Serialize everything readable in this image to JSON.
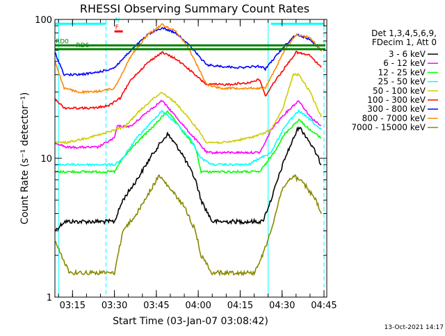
{
  "chart_data": {
    "type": "line",
    "title": "RHESSI Observing Summary Count Rates",
    "ylabel": "Count Rate (s⁻¹ detector⁻¹)",
    "xlabel": "Start Time (03-Jan-07 03:08:42)",
    "footer_date": "13-Oct-2021 14:17",
    "yscale": "log",
    "ylim": [
      1,
      100
    ],
    "xlim": [
      "03:08:42",
      "04:46:00"
    ],
    "x_ticks": [
      "03:15",
      "03:30",
      "03:45",
      "04:00",
      "04:15",
      "04:30",
      "04:45"
    ],
    "y_ticks": [
      "1",
      "10",
      "100"
    ],
    "legend_header": [
      "Det 1,3,4,5,6,9,",
      "FDecim 1, Att 0"
    ],
    "legend_position": "right",
    "series": [
      {
        "name": "3 - 6 keV",
        "color": "#000000",
        "points": [
          [
            "03:08:42",
            3.0
          ],
          [
            "03:12",
            3.5
          ],
          [
            "03:16",
            3.5
          ],
          [
            "03:20",
            3.5
          ],
          [
            "03:24",
            3.5
          ],
          [
            "03:30",
            3.5
          ],
          [
            "03:33",
            5
          ],
          [
            "03:38",
            7
          ],
          [
            "03:44",
            11
          ],
          [
            "03:49",
            15
          ],
          [
            "03:54",
            11
          ],
          [
            "03:59",
            7
          ],
          [
            "04:01",
            5
          ],
          [
            "04:05",
            3.5
          ],
          [
            "04:10",
            3.5
          ],
          [
            "04:15",
            3.5
          ],
          [
            "04:20",
            3.5
          ],
          [
            "04:23",
            3.5
          ],
          [
            "04:26",
            5
          ],
          [
            "04:31",
            10
          ],
          [
            "04:36",
            17
          ],
          [
            "04:39",
            14
          ],
          [
            "04:42",
            11
          ],
          [
            "04:44",
            9
          ]
        ]
      },
      {
        "name": "6 - 12 keV",
        "color": "#ff00ff",
        "points": [
          [
            "03:08:42",
            13
          ],
          [
            "03:13",
            12
          ],
          [
            "03:18",
            12
          ],
          [
            "03:24",
            12
          ],
          [
            "03:30",
            14
          ],
          [
            "03:31",
            17
          ],
          [
            "03:33",
            17
          ],
          [
            "03:36",
            17
          ],
          [
            "03:41",
            21
          ],
          [
            "03:47",
            26
          ],
          [
            "03:52",
            20
          ],
          [
            "03:56",
            16
          ],
          [
            "04:00",
            13
          ],
          [
            "04:03",
            11
          ],
          [
            "04:10",
            11
          ],
          [
            "04:16",
            11
          ],
          [
            "04:22",
            11
          ],
          [
            "04:24",
            13
          ],
          [
            "04:26",
            16
          ],
          [
            "04:30",
            20
          ],
          [
            "04:34",
            24
          ],
          [
            "04:36",
            26
          ],
          [
            "04:40",
            20
          ],
          [
            "04:44",
            17
          ]
        ]
      },
      {
        "name": "12 - 25 keV",
        "color": "#00ff00",
        "points": [
          [
            "03:08:42",
            8
          ],
          [
            "03:12",
            8
          ],
          [
            "03:18",
            8
          ],
          [
            "03:24",
            8
          ],
          [
            "03:30",
            8
          ],
          [
            "03:33",
            10
          ],
          [
            "03:38",
            13
          ],
          [
            "03:44",
            17
          ],
          [
            "03:49",
            22
          ],
          [
            "03:54",
            16
          ],
          [
            "03:59",
            12
          ],
          [
            "04:01",
            8
          ],
          [
            "04:05",
            8
          ],
          [
            "04:12",
            8
          ],
          [
            "04:18",
            8
          ],
          [
            "04:22",
            8
          ],
          [
            "04:24",
            9
          ],
          [
            "04:27",
            11
          ],
          [
            "04:31",
            15
          ],
          [
            "04:36",
            19
          ],
          [
            "04:40",
            16
          ],
          [
            "04:44",
            14
          ]
        ]
      },
      {
        "name": "25 - 50 keV",
        "color": "#00ffff",
        "points": [
          [
            "03:08:42",
            9
          ],
          [
            "03:12",
            9
          ],
          [
            "03:16",
            9
          ],
          [
            "03:24",
            9
          ],
          [
            "03:30",
            9
          ],
          [
            "03:33",
            10
          ],
          [
            "03:38",
            14
          ],
          [
            "03:43",
            18
          ],
          [
            "03:47",
            22
          ],
          [
            "03:52",
            18
          ],
          [
            "03:57",
            14
          ],
          [
            "04:01",
            10
          ],
          [
            "04:05",
            9
          ],
          [
            "04:12",
            9
          ],
          [
            "04:18",
            9
          ],
          [
            "04:22",
            10
          ],
          [
            "04:26",
            11
          ],
          [
            "04:31",
            17
          ],
          [
            "04:36",
            22
          ],
          [
            "04:40",
            19
          ],
          [
            "04:44",
            16
          ]
        ]
      },
      {
        "name": "50 - 100 keV",
        "color": "#cccc00",
        "points": [
          [
            "03:08:42",
            13
          ],
          [
            "03:13",
            13
          ],
          [
            "03:20",
            14
          ],
          [
            "03:26",
            15
          ],
          [
            "03:30",
            16
          ],
          [
            "03:34",
            17
          ],
          [
            "03:38",
            21
          ],
          [
            "03:43",
            26
          ],
          [
            "03:47",
            30
          ],
          [
            "03:52",
            25
          ],
          [
            "03:56",
            20
          ],
          [
            "04:00",
            16
          ],
          [
            "04:03",
            13
          ],
          [
            "04:10",
            13
          ],
          [
            "04:18",
            14
          ],
          [
            "04:23",
            15
          ],
          [
            "04:26",
            16
          ],
          [
            "04:30",
            22
          ],
          [
            "04:34",
            40
          ],
          [
            "04:36",
            40
          ],
          [
            "04:40",
            30
          ],
          [
            "04:44",
            20
          ]
        ]
      },
      {
        "name": "100 - 300 keV",
        "color": "#ff0000",
        "points": [
          [
            "03:08:42",
            27
          ],
          [
            "03:12",
            23
          ],
          [
            "03:17",
            23
          ],
          [
            "03:23",
            23
          ],
          [
            "03:28",
            24
          ],
          [
            "03:32",
            27
          ],
          [
            "03:36",
            37
          ],
          [
            "03:42",
            49
          ],
          [
            "03:47",
            58
          ],
          [
            "03:52",
            52
          ],
          [
            "03:56",
            45
          ],
          [
            "04:00",
            38
          ],
          [
            "04:03",
            34
          ],
          [
            "04:10",
            34
          ],
          [
            "04:18",
            35
          ],
          [
            "04:22",
            37
          ],
          [
            "04:24",
            28
          ],
          [
            "04:27",
            35
          ],
          [
            "04:31",
            45
          ],
          [
            "04:35",
            58
          ],
          [
            "04:40",
            55
          ],
          [
            "04:44",
            45
          ]
        ]
      },
      {
        "name": "300 - 800 keV",
        "color": "#0000ff",
        "points": [
          [
            "03:08:42",
            58
          ],
          [
            "03:12",
            40
          ],
          [
            "03:17",
            40
          ],
          [
            "03:22",
            41
          ],
          [
            "03:27",
            43
          ],
          [
            "03:30",
            45
          ],
          [
            "03:36",
            60
          ],
          [
            "03:42",
            78
          ],
          [
            "03:47",
            87
          ],
          [
            "03:52",
            80
          ],
          [
            "03:56",
            68
          ],
          [
            "04:00",
            55
          ],
          [
            "04:03",
            47
          ],
          [
            "04:08",
            46
          ],
          [
            "04:15",
            45
          ],
          [
            "04:22",
            46
          ],
          [
            "04:24",
            44
          ],
          [
            "04:27",
            52
          ],
          [
            "04:31",
            65
          ],
          [
            "04:35",
            78
          ],
          [
            "04:40",
            72
          ],
          [
            "04:44",
            60
          ]
        ]
      },
      {
        "name": "800 - 7000 keV",
        "color": "#ff8800",
        "points": [
          [
            "03:08:42",
            50
          ],
          [
            "03:12",
            32
          ],
          [
            "03:17",
            30
          ],
          [
            "03:22",
            30
          ],
          [
            "03:27",
            31
          ],
          [
            "03:30",
            32
          ],
          [
            "03:36",
            55
          ],
          [
            "03:42",
            78
          ],
          [
            "03:47",
            92
          ],
          [
            "03:52",
            82
          ],
          [
            "03:56",
            65
          ],
          [
            "04:00",
            45
          ],
          [
            "04:03",
            34
          ],
          [
            "04:08",
            32
          ],
          [
            "04:15",
            32
          ],
          [
            "04:22",
            32
          ],
          [
            "04:24",
            32
          ],
          [
            "04:27",
            42
          ],
          [
            "04:31",
            60
          ],
          [
            "04:35",
            78
          ],
          [
            "04:40",
            74
          ],
          [
            "04:44",
            60
          ]
        ]
      },
      {
        "name": "7000 - 15000 keV",
        "color": "#888800",
        "points": [
          [
            "03:08:42",
            2.5
          ],
          [
            "03:11",
            2.0
          ],
          [
            "03:14",
            1.5
          ],
          [
            "03:18",
            1.5
          ],
          [
            "03:22",
            1.5
          ],
          [
            "03:26",
            1.5
          ],
          [
            "03:30",
            1.5
          ],
          [
            "03:33",
            3.0
          ],
          [
            "03:38",
            4.0
          ],
          [
            "03:42",
            5.5
          ],
          [
            "03:46",
            7.5
          ],
          [
            "03:50",
            6.0
          ],
          [
            "03:55",
            4.5
          ],
          [
            "03:59",
            3.0
          ],
          [
            "04:01",
            2.0
          ],
          [
            "04:05",
            1.5
          ],
          [
            "04:10",
            1.5
          ],
          [
            "04:15",
            1.5
          ],
          [
            "04:20",
            1.5
          ],
          [
            "04:23",
            2.0
          ],
          [
            "04:26",
            3.0
          ],
          [
            "04:30",
            6.0
          ],
          [
            "04:34",
            7.5
          ],
          [
            "04:38",
            6.5
          ],
          [
            "04:42",
            5.0
          ],
          [
            "04:44",
            4.0
          ]
        ]
      }
    ],
    "flags": [
      {
        "label": "RD0",
        "color": "#008000",
        "type": "level",
        "y": 65,
        "x_start": "03:08:42",
        "x_end": "04:45:30",
        "label_at": "03:08:42"
      },
      {
        "label": "RD6",
        "color": "#008000",
        "type": "level",
        "y": 61,
        "x_start": "03:08:42",
        "x_end": "04:45:30",
        "label_at": "03:16"
      },
      {
        "label": "N",
        "color": "#00ffff",
        "type": "bar",
        "y": 93,
        "segments": [
          [
            "03:08:42",
            "03:27"
          ],
          [
            "04:26",
            "04:45"
          ]
        ],
        "label_at": "03:30"
      },
      {
        "label": "F",
        "color": "#ff0000",
        "type": "bar",
        "y": 82,
        "segments": [
          [
            "03:30",
            "03:33"
          ]
        ],
        "label_at": "03:30"
      }
    ],
    "vlines": [
      {
        "x": "03:10",
        "color": "#00ffff",
        "style": "solid"
      },
      {
        "x": "03:27",
        "color": "#00ffff",
        "style": "dashed"
      },
      {
        "x": "04:25",
        "color": "#00ffff",
        "style": "solid"
      },
      {
        "x": "04:45",
        "color": "#00ffff",
        "style": "dashed"
      }
    ]
  }
}
